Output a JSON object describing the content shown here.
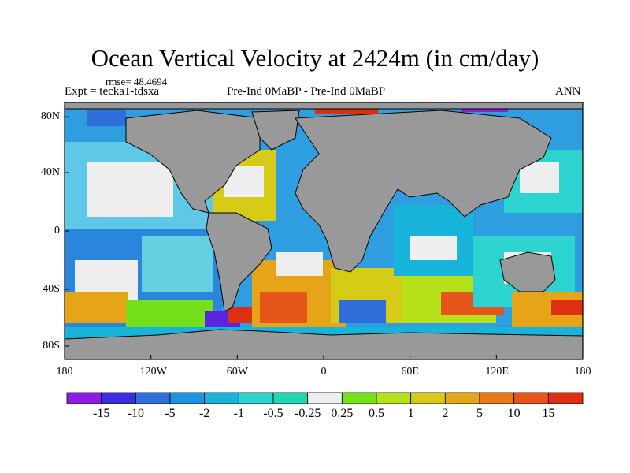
{
  "title": "Ocean Vertical Velocity at 2424m (in cm/day)",
  "stats": {
    "rmse": "rmse= 48.4694"
  },
  "experiment": "Expt = tecka1-tdsxa",
  "comparison": "Pre-Ind 0MaBP - Pre-Ind   0MaBP",
  "season": "ANN",
  "axes": {
    "x_ticks": [
      "180",
      "120W",
      "60W",
      "0",
      "60E",
      "120E",
      "180"
    ],
    "y_ticks": [
      "80N",
      "40N",
      "0",
      "40S",
      "80S"
    ]
  },
  "colorbar": {
    "labels": [
      "-15",
      "-10",
      "-5",
      "-2",
      "-1",
      "-0.5",
      "-0.25",
      "0.25",
      "0.5",
      "1",
      "2",
      "5",
      "10",
      "15"
    ],
    "colors": [
      "#8a1ee6",
      "#3c2ee0",
      "#2f6edb",
      "#1f93e0",
      "#18b3d9",
      "#2cd3cf",
      "#1fd6b0",
      "#eeeeee",
      "#74e01c",
      "#b6e01a",
      "#d6cc18",
      "#e6a418",
      "#e67a16",
      "#e6561a",
      "#e02e12"
    ]
  },
  "map": {
    "land_color": "#999999",
    "coast_color": "#000000"
  }
}
